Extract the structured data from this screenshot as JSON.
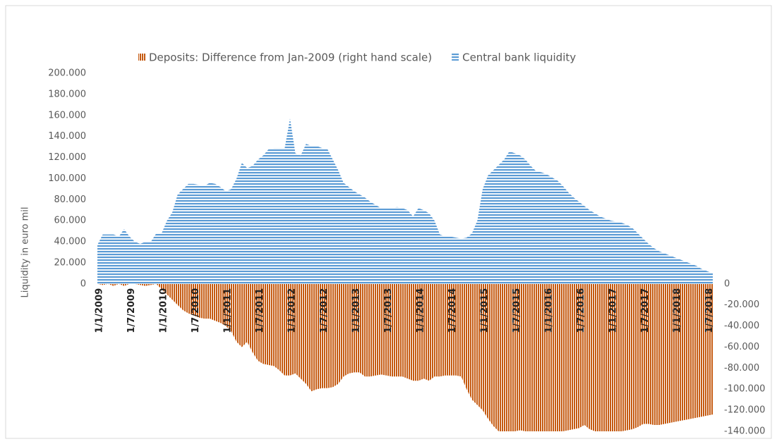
{
  "chart_data": {
    "type": "area",
    "ylabel": "Liquidity in euro mil",
    "legend": "top",
    "categories": [
      "1/1/2009",
      null,
      null,
      null,
      null,
      null,
      "1/7/2009",
      null,
      null,
      null,
      null,
      null,
      "1/1/2010",
      null,
      null,
      null,
      null,
      null,
      "1/7/2010",
      null,
      null,
      null,
      null,
      null,
      "1/1/2011",
      null,
      null,
      null,
      null,
      null,
      "1/7/2011",
      null,
      null,
      null,
      null,
      null,
      "1/1/2012",
      null,
      null,
      null,
      null,
      null,
      "1/7/2012",
      null,
      null,
      null,
      null,
      null,
      "1/1/2013",
      null,
      null,
      null,
      null,
      null,
      "1/7/2013",
      null,
      null,
      null,
      null,
      null,
      "1/1/2014",
      null,
      null,
      null,
      null,
      null,
      "1/7/2014",
      null,
      null,
      null,
      null,
      null,
      "1/1/2015",
      null,
      null,
      null,
      null,
      null,
      "1/7/2015",
      null,
      null,
      null,
      null,
      null,
      "1/1/2016",
      null,
      null,
      null,
      null,
      null,
      "1/7/2016",
      null,
      null,
      null,
      null,
      null,
      "1/1/2017",
      null,
      null,
      null,
      null,
      null,
      "1/7/2017",
      null,
      null,
      null,
      null,
      null,
      "1/1/2018",
      null,
      null,
      null,
      null,
      null,
      "1/7/2018",
      null
    ],
    "series": [
      {
        "name": "Deposits: Difference from Jan-2009 (right hand scale)",
        "color": "#c55a11",
        "axis": "y2",
        "values": [
          0,
          -1000,
          0,
          -2000,
          0,
          -2000,
          0,
          0,
          -1000,
          -2000,
          -1000,
          0,
          -5000,
          -10000,
          -15000,
          -20000,
          -25000,
          -28000,
          -30000,
          -32000,
          -33000,
          -33000,
          -35000,
          -37000,
          -40000,
          -45000,
          -55000,
          -60000,
          -55000,
          -65000,
          -73000,
          -76000,
          -77000,
          -78000,
          -82000,
          -87000,
          -87000,
          -85000,
          -90000,
          -95000,
          -102000,
          -100000,
          -99000,
          -99000,
          -98000,
          -95000,
          -88000,
          -85000,
          -84000,
          -84000,
          -88000,
          -88000,
          -87000,
          -86000,
          -87000,
          -88000,
          -88000,
          -88000,
          -90000,
          -92000,
          -92000,
          -90000,
          -92000,
          -88000,
          -88000,
          -87000,
          -87000,
          -87000,
          -88000,
          -100000,
          -110000,
          -115000,
          -120000,
          -128000,
          -135000,
          -140000,
          -140000,
          -140000,
          -140000,
          -139000,
          -140000,
          -140000,
          -140000,
          -140000,
          -140000,
          -140000,
          -140000,
          -140000,
          -139000,
          -138000,
          -137000,
          -134000,
          -138000,
          -140000,
          -140000,
          -140000,
          -140000,
          -140000,
          -140000,
          -139000,
          -138000,
          -136000,
          -133000,
          -133000,
          -134000,
          -134000,
          -133000,
          -132000,
          -131000,
          -130000,
          -129000,
          -128000,
          -127000,
          -126000,
          -125000,
          -124000
        ]
      },
      {
        "name": "Central bank liquidity",
        "color": "#5b9bd5",
        "values": [
          37000,
          47000,
          47000,
          47000,
          45000,
          52000,
          45000,
          40000,
          38000,
          40000,
          40000,
          48000,
          48000,
          60000,
          68000,
          85000,
          90000,
          95000,
          95000,
          94000,
          93000,
          96000,
          95000,
          92000,
          88000,
          90000,
          100000,
          115000,
          110000,
          112000,
          118000,
          122000,
          128000,
          129000,
          129000,
          129000,
          157000,
          124000,
          122000,
          133000,
          131000,
          131000,
          129000,
          128000,
          118000,
          108000,
          96000,
          92000,
          88000,
          85000,
          82000,
          78000,
          75000,
          72000,
          72000,
          72000,
          73000,
          72000,
          70000,
          64000,
          72000,
          70000,
          67000,
          60000,
          47000,
          45000,
          45000,
          44000,
          43000,
          44000,
          48000,
          60000,
          90000,
          103000,
          108000,
          113000,
          118000,
          126000,
          124000,
          122000,
          118000,
          112000,
          107000,
          106000,
          104000,
          101000,
          98000,
          93000,
          87000,
          82000,
          78000,
          74000,
          70000,
          67000,
          64000,
          62000,
          60000,
          59000,
          58000,
          56000,
          53000,
          48000,
          43000,
          38000,
          34000,
          31000,
          29000,
          27000,
          25000,
          23000,
          21000,
          19000,
          17000,
          14000,
          12000,
          10000
        ]
      }
    ],
    "ylim": [
      -140000,
      200000
    ],
    "yticks": [
      0,
      {
        "value": 20000,
        "label": "20.000"
      },
      {
        "value": 40000,
        "label": "40.000"
      },
      {
        "value": 60000,
        "label": "60.000"
      },
      {
        "value": 80000,
        "label": "80.000"
      },
      {
        "value": 100000,
        "label": "100.000"
      },
      {
        "value": 120000,
        "label": "120.000"
      },
      {
        "value": 140000,
        "label": "140.000"
      },
      {
        "value": 160000,
        "label": "160.000"
      },
      {
        "value": 180000,
        "label": "180.000"
      },
      {
        "value": 200000,
        "label": "200.000"
      }
    ],
    "y2lim": [
      -140000,
      200000
    ],
    "y2ticks": [
      0,
      {
        "value": -20000,
        "label": "-20.000"
      },
      {
        "value": -40000,
        "label": "-40.000"
      },
      {
        "value": -60000,
        "label": "-60.000"
      },
      {
        "value": -80000,
        "label": "-80.000"
      },
      {
        "value": -100000,
        "label": "-100.000"
      },
      {
        "value": -120000,
        "label": "-120.000"
      },
      {
        "value": -140000,
        "label": "-140.000"
      }
    ]
  }
}
